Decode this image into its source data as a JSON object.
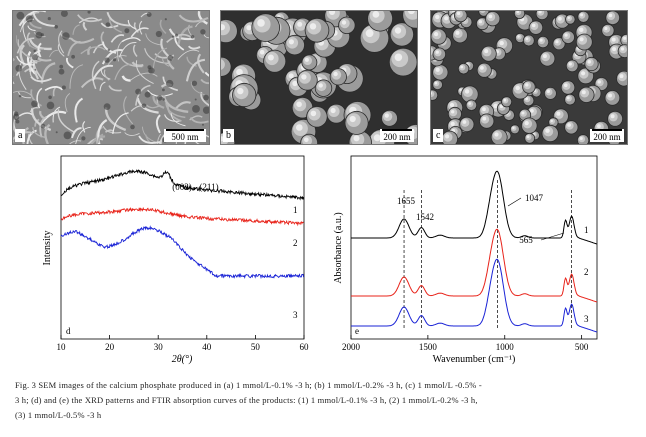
{
  "sem_panels": [
    {
      "letter": "a",
      "scale": "500 nm"
    },
    {
      "letter": "b",
      "scale": "200 nm"
    },
    {
      "letter": "c",
      "scale": "200 nm"
    }
  ],
  "xrd": {
    "panel_letter": "d",
    "ylabel": "Intensity",
    "xlabel": "2θ(°)",
    "x_ticks": [
      "10",
      "20",
      "30",
      "40",
      "50",
      "60"
    ],
    "peak_labels": [
      "(002)",
      "(211)"
    ],
    "curve_labels": [
      "1",
      "2",
      "3"
    ],
    "colors": [
      "#000000",
      "#e8231a",
      "#1a23d6"
    ]
  },
  "ftir": {
    "panel_letter": "e",
    "ylabel": "Absorbance (a.u.)",
    "xlabel": "Wavenumber (cm⁻¹)",
    "x_ticks": [
      "2000",
      "1500",
      "1000",
      "500"
    ],
    "peak_labels": [
      "1655",
      "1542",
      "1047",
      "565"
    ],
    "curve_labels": [
      "1",
      "2",
      "3"
    ],
    "colors": [
      "#000000",
      "#e8231a",
      "#1a23d6"
    ]
  },
  "caption": {
    "line1": "Fig. 3   SEM images of the calcium phosphate produced in (a) 1 mmol/L-0.1% -3 h; (b) 1 mmol/L-0.2% -3 h, (c) 1 mmol/L -0.5% -",
    "line2": "3 h; (d) and (e) the XRD patterns and FTIR absorption curves of the products: (1) 1 mmol/L-0.1% -3 h, (2) 1 mmol/L-0.2% -3 h,",
    "line3": "(3) 1 mmol/L-0.5% -3 h"
  }
}
